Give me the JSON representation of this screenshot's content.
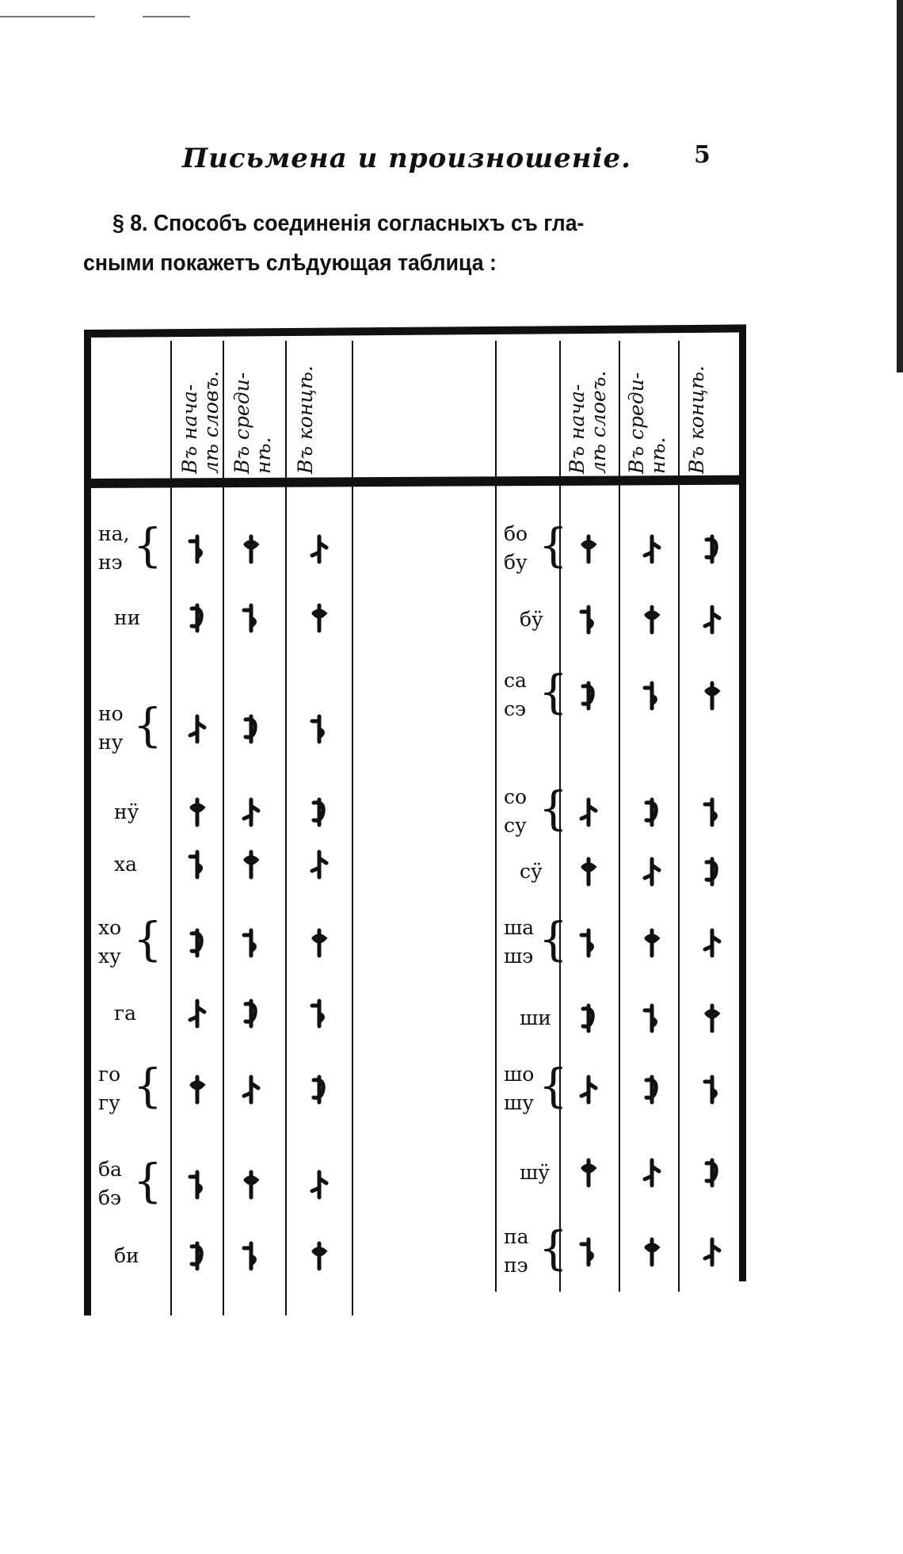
{
  "running_title": "Письмена и произношеніе.",
  "page_number": "5",
  "paragraph": {
    "line1": "§ 8.  Способъ соединенія согласныхъ съ гла-",
    "line2": "сными покажетъ слѣдующая таблица :"
  },
  "table": {
    "headers_left": [
      "Въ нача-\nлѣ словъ.",
      "Въ среди-\nнѣ.",
      "Въ концѣ."
    ],
    "headers_right": [
      "Въ нача-\nлѣ слоеъ.",
      "Въ среди-\nнѣ.",
      "Въ концѣ."
    ],
    "left_rows": [
      {
        "syllables": [
          "на,",
          "нэ"
        ]
      },
      {
        "syllables": [
          "ни"
        ]
      },
      {
        "syllables": [
          "но",
          "ну"
        ]
      },
      {
        "syllables": [
          "нӱ"
        ]
      },
      {
        "syllables": [
          "ха"
        ]
      },
      {
        "syllables": [
          "хо",
          "ху"
        ]
      },
      {
        "syllables": [
          "га"
        ]
      },
      {
        "syllables": [
          "го",
          "гу"
        ]
      },
      {
        "syllables": [
          "ба",
          "бэ"
        ]
      },
      {
        "syllables": [
          "би"
        ]
      }
    ],
    "right_rows": [
      {
        "syllables": [
          "бо",
          "бу"
        ]
      },
      {
        "syllables": [
          "бӱ"
        ]
      },
      {
        "syllables": [
          "са",
          "сэ"
        ]
      },
      {
        "syllables": [
          "со",
          "су"
        ]
      },
      {
        "syllables": [
          "сӱ"
        ]
      },
      {
        "syllables": [
          "ша",
          "шэ"
        ]
      },
      {
        "syllables": [
          "ши"
        ]
      },
      {
        "syllables": [
          "шо",
          "шу"
        ]
      },
      {
        "syllables": [
          "шӱ"
        ]
      },
      {
        "syllables": [
          "па",
          "пэ"
        ]
      }
    ],
    "glyph_icon": "mongolian-script-glyph"
  }
}
